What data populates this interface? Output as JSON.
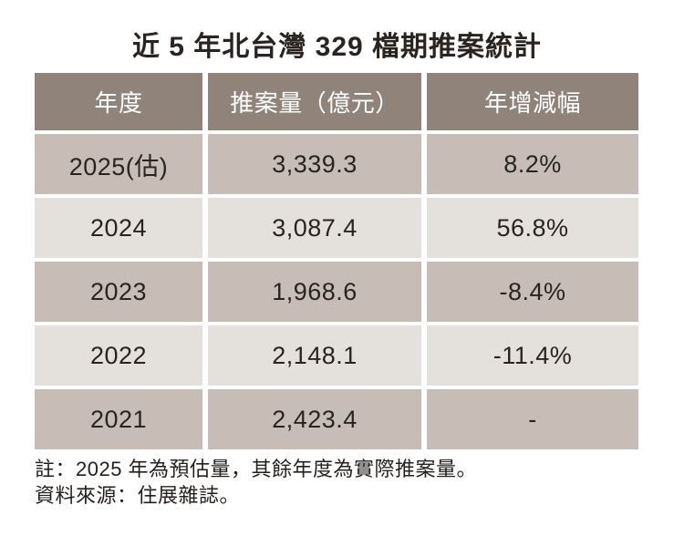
{
  "page": {
    "title": "近 5 年北台灣 329 檔期推案統計",
    "note_line1": "註：2025 年為預估量，其餘年度為實際推案量。",
    "note_line2": "資料來源：住展雜誌。"
  },
  "chart_data": {
    "type": "table",
    "title": "近 5 年北台灣 329 檔期推案統計",
    "columns": [
      "年度",
      "推案量（億元）",
      "年增減幅"
    ],
    "rows": [
      [
        "2025(估)",
        "3,339.3",
        "8.2%"
      ],
      [
        "2024",
        "3,087.4",
        "56.8%"
      ],
      [
        "2023",
        "1,968.6",
        "-8.4%"
      ],
      [
        "2022",
        "2,148.1",
        "-11.4%"
      ],
      [
        "2021",
        "2,423.4",
        "-"
      ]
    ],
    "notes": [
      "註：2025 年為預估量，其餘年度為實際推案量。",
      "資料來源：住展雜誌。"
    ],
    "layout": {
      "row_shading_alternating": true,
      "header_background": "#8f837a",
      "dark_row_background": "#c7bdb6",
      "light_row_background": "#e4e1dc",
      "header_text_color": "#ffffff",
      "body_text_color": "#2a2421"
    }
  }
}
